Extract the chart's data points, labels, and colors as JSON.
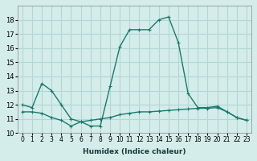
{
  "xlabel": "Humidex (Indice chaleur)",
  "line1_x": [
    0,
    1,
    2,
    3,
    4,
    5,
    6,
    7,
    8,
    9,
    10,
    11,
    12,
    13,
    14,
    15,
    16,
    17,
    18,
    19,
    20,
    21,
    22,
    23
  ],
  "line1_y": [
    12.0,
    11.8,
    13.5,
    13.0,
    12.0,
    11.0,
    10.8,
    10.5,
    10.5,
    13.3,
    16.1,
    17.3,
    17.3,
    17.3,
    18.0,
    18.2,
    16.4,
    12.8,
    11.8,
    11.8,
    11.9,
    11.5,
    11.1,
    10.9
  ],
  "line2_x": [
    0,
    1,
    2,
    3,
    4,
    5,
    6,
    7,
    8,
    9,
    10,
    11,
    12,
    13,
    14,
    15,
    16,
    17,
    18,
    19,
    20,
    21,
    22,
    23
  ],
  "line2_y": [
    11.5,
    11.5,
    11.4,
    11.1,
    10.9,
    10.5,
    10.8,
    10.9,
    11.0,
    11.1,
    11.3,
    11.4,
    11.5,
    11.5,
    11.55,
    11.6,
    11.65,
    11.7,
    11.75,
    11.75,
    11.8,
    11.5,
    11.1,
    10.9
  ],
  "line_color": "#1a7a6e",
  "bg_color": "#d4ecea",
  "grid_color": "#b0d8d4",
  "xlim": [
    -0.5,
    23.5
  ],
  "ylim": [
    10,
    19
  ],
  "yticks": [
    10,
    11,
    12,
    13,
    14,
    15,
    16,
    17,
    18
  ],
  "xtick_labels": [
    "0",
    "1",
    "2",
    "3",
    "4",
    "5",
    "6",
    "7",
    "8",
    "9",
    "10",
    "11",
    "12",
    "13",
    "14",
    "15",
    "16",
    "17",
    "18",
    "19",
    "20",
    "21",
    "22",
    "23"
  ]
}
